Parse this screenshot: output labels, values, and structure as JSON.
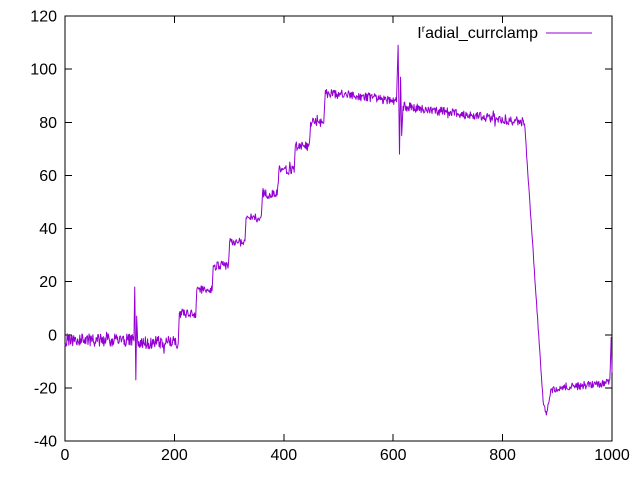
{
  "chart_data": {
    "type": "line",
    "title": "",
    "xlabel": "",
    "ylabel": "",
    "xlim": [
      0,
      1000
    ],
    "ylim": [
      -40,
      120
    ],
    "x_ticks": [
      0,
      200,
      400,
      600,
      800,
      1000
    ],
    "y_ticks": [
      -40,
      -20,
      0,
      20,
      40,
      60,
      80,
      100,
      120
    ],
    "grid": false,
    "background_color": "#ffffff",
    "border_color": "#000000",
    "series_color": "#9400d3",
    "legend": {
      "label_base": "I",
      "label_sup": "r",
      "label_rest": "adial_currclamp",
      "display_text": "Iʳadial_currclamp",
      "position": "top-right-inside",
      "sample_color": "#9400d3"
    },
    "noise_seed": 42,
    "sample_step": 1,
    "description": "Noisy current-clamp signal: flat ~-2 with spike at x=130, staircase rise x=200..475 in ~9-unit steps to ~90, slow decline to 80 with oscillation spike at x=612 (peak 109, trough 68), sharp drop at x=840 to -30, flat ~-18, end spike to -1 at x=1000",
    "segments": [
      {
        "x0": 0,
        "y0": -2,
        "x1": 126,
        "y1": -2,
        "n": 2.4
      },
      {
        "x0": 126,
        "y0": -2,
        "x1": 127.5,
        "y1": 18,
        "n": 0
      },
      {
        "x0": 127.5,
        "y0": 18,
        "x1": 129.5,
        "y1": -17,
        "n": 0
      },
      {
        "x0": 129.5,
        "y0": -17,
        "x1": 131,
        "y1": 7,
        "n": 0
      },
      {
        "x0": 131,
        "y0": 7,
        "x1": 133,
        "y1": -3,
        "n": 0
      },
      {
        "x0": 133,
        "y0": -3,
        "x1": 207,
        "y1": -3,
        "n": 2.4
      },
      {
        "x0": 207,
        "y0": -3,
        "x1": 209,
        "y1": 8,
        "n": 0
      },
      {
        "x0": 209,
        "y0": 8,
        "x1": 239,
        "y1": 8,
        "n": 1.7
      },
      {
        "x0": 239,
        "y0": 8,
        "x1": 241,
        "y1": 17,
        "n": 0
      },
      {
        "x0": 241,
        "y0": 17,
        "x1": 269,
        "y1": 17,
        "n": 1.7
      },
      {
        "x0": 269,
        "y0": 17,
        "x1": 271,
        "y1": 26,
        "n": 0
      },
      {
        "x0": 271,
        "y0": 26,
        "x1": 299,
        "y1": 26,
        "n": 1.7
      },
      {
        "x0": 299,
        "y0": 26,
        "x1": 301,
        "y1": 35,
        "n": 0
      },
      {
        "x0": 301,
        "y0": 35,
        "x1": 329,
        "y1": 35,
        "n": 1.7
      },
      {
        "x0": 329,
        "y0": 35,
        "x1": 331,
        "y1": 44,
        "n": 0
      },
      {
        "x0": 331,
        "y0": 44,
        "x1": 359,
        "y1": 44,
        "n": 1.7
      },
      {
        "x0": 359,
        "y0": 44,
        "x1": 361,
        "y1": 53,
        "n": 0
      },
      {
        "x0": 361,
        "y0": 53,
        "x1": 389,
        "y1": 53,
        "n": 1.7
      },
      {
        "x0": 389,
        "y0": 53,
        "x1": 391,
        "y1": 62,
        "n": 0
      },
      {
        "x0": 391,
        "y0": 62,
        "x1": 419,
        "y1": 62,
        "n": 1.7
      },
      {
        "x0": 419,
        "y0": 62,
        "x1": 421,
        "y1": 71,
        "n": 0
      },
      {
        "x0": 421,
        "y0": 71,
        "x1": 447,
        "y1": 71,
        "n": 1.7
      },
      {
        "x0": 447,
        "y0": 71,
        "x1": 449,
        "y1": 80,
        "n": 0
      },
      {
        "x0": 449,
        "y0": 80,
        "x1": 473,
        "y1": 80,
        "n": 1.7
      },
      {
        "x0": 473,
        "y0": 80,
        "x1": 476,
        "y1": 92,
        "n": 0
      },
      {
        "x0": 476,
        "y0": 91,
        "x1": 530,
        "y1": 90,
        "n": 1.7
      },
      {
        "x0": 530,
        "y0": 90,
        "x1": 606,
        "y1": 88,
        "n": 1.7
      },
      {
        "x0": 606,
        "y0": 88,
        "x1": 609,
        "y1": 109,
        "n": 0
      },
      {
        "x0": 609,
        "y0": 109,
        "x1": 611.5,
        "y1": 68,
        "n": 0
      },
      {
        "x0": 611.5,
        "y0": 68,
        "x1": 613.5,
        "y1": 97,
        "n": 0
      },
      {
        "x0": 613.5,
        "y0": 97,
        "x1": 615.5,
        "y1": 75,
        "n": 0
      },
      {
        "x0": 615.5,
        "y0": 75,
        "x1": 618,
        "y1": 86,
        "n": 0
      },
      {
        "x0": 618,
        "y0": 86,
        "x1": 840,
        "y1": 80,
        "n": 1.7
      },
      {
        "x0": 840,
        "y0": 80,
        "x1": 874,
        "y1": -25,
        "n": 0.8
      },
      {
        "x0": 874,
        "y0": -25,
        "x1": 880,
        "y1": -30,
        "n": 0.8
      },
      {
        "x0": 880,
        "y0": -30,
        "x1": 888,
        "y1": -21,
        "n": 0.8
      },
      {
        "x0": 888,
        "y0": -20.5,
        "x1": 996,
        "y1": -18,
        "n": 1.4
      },
      {
        "x0": 996,
        "y0": -18,
        "x1": 998.5,
        "y1": -1,
        "n": 0
      },
      {
        "x0": 998.5,
        "y0": -1,
        "x1": 1000,
        "y1": -14,
        "n": 0
      }
    ]
  }
}
